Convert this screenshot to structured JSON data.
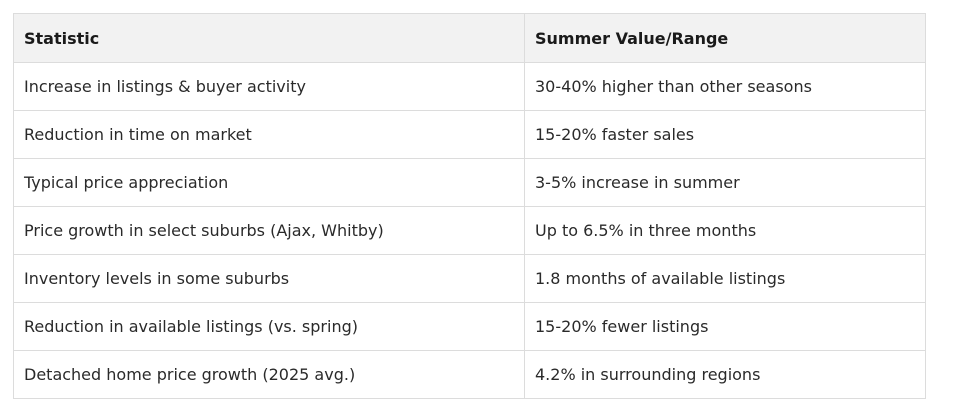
{
  "table": {
    "headers": [
      "Statistic",
      "Summer Value/Range"
    ],
    "rows": [
      [
        "Increase in listings & buyer activity",
        "30-40% higher than other seasons"
      ],
      [
        "Reduction in time on market",
        "15-20% faster sales"
      ],
      [
        "Typical price appreciation",
        "3-5% increase in summer"
      ],
      [
        "Price growth in select suburbs (Ajax, Whitby)",
        "Up to 6.5% in three months"
      ],
      [
        "Inventory levels in some suburbs",
        "1.8 months of available listings"
      ],
      [
        "Reduction in available listings (vs. spring)",
        "15-20% fewer listings"
      ],
      [
        "Detached home price growth (2025 avg.)",
        "4.2% in surrounding regions"
      ]
    ]
  },
  "colors": {
    "header_bg": "#f2f2f2",
    "border": "#dcdcdc",
    "text": "#222222"
  }
}
